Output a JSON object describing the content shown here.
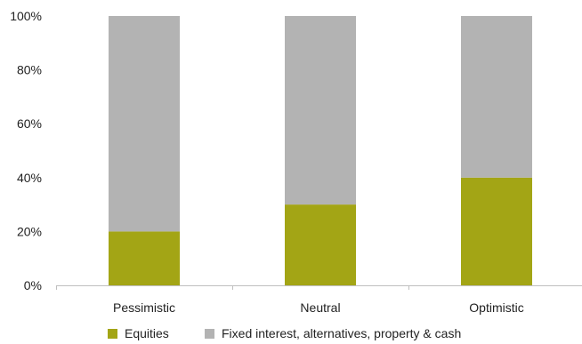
{
  "chart_data": {
    "type": "bar",
    "stacked": true,
    "categories": [
      "Pessimistic",
      "Neutral",
      "Optimistic"
    ],
    "series": [
      {
        "name": "Equities",
        "values": [
          20,
          30,
          40
        ],
        "color": "#a3a515"
      },
      {
        "name": "Fixed interest, alternatives, property & cash",
        "values": [
          80,
          70,
          60
        ],
        "color": "#b3b3b3"
      }
    ],
    "ylim": [
      0,
      100
    ],
    "yticks": [
      "0%",
      "20%",
      "40%",
      "60%",
      "80%",
      "100%"
    ],
    "grid": false,
    "legend": "bottom"
  }
}
